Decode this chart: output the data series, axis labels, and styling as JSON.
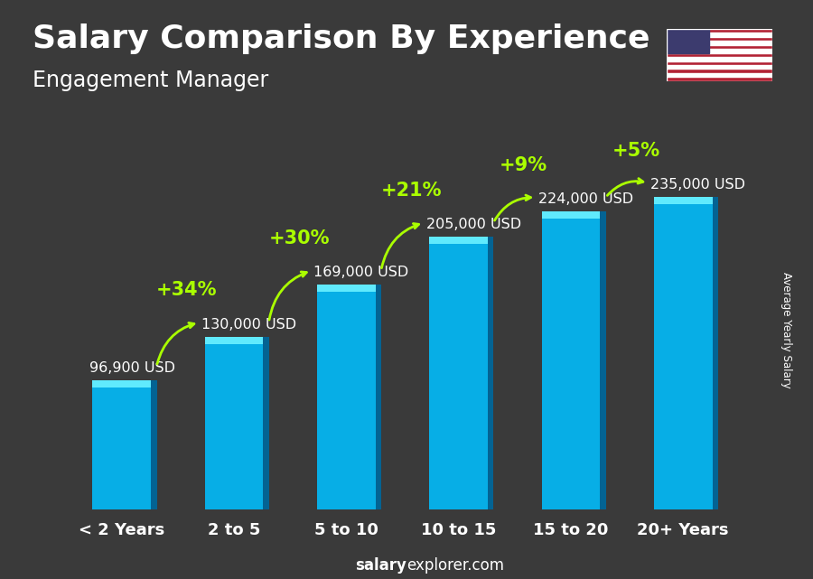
{
  "title": "Salary Comparison By Experience",
  "subtitle": "Engagement Manager",
  "categories": [
    "< 2 Years",
    "2 to 5",
    "5 to 10",
    "10 to 15",
    "15 to 20",
    "20+ Years"
  ],
  "values": [
    96900,
    130000,
    169000,
    205000,
    224000,
    235000
  ],
  "labels": [
    "96,900 USD",
    "130,000 USD",
    "169,000 USD",
    "205,000 USD",
    "224,000 USD",
    "235,000 USD"
  ],
  "pct_changes": [
    "+34%",
    "+30%",
    "+21%",
    "+9%",
    "+5%"
  ],
  "bar_color_face": "#00bfff",
  "bar_color_dark": "#006699",
  "bar_color_light": "#66eeff",
  "ylabel": "Average Yearly Salary",
  "footer_bold": "salary",
  "footer_normal": "explorer.com",
  "title_fontsize": 26,
  "subtitle_fontsize": 17,
  "label_fontsize": 11.5,
  "pct_fontsize": 15,
  "cat_fontsize": 13,
  "bg_color": "#3a3a3a",
  "text_color": "#ffffff",
  "accent_color": "#aaff00",
  "ylim": [
    0,
    270000
  ]
}
